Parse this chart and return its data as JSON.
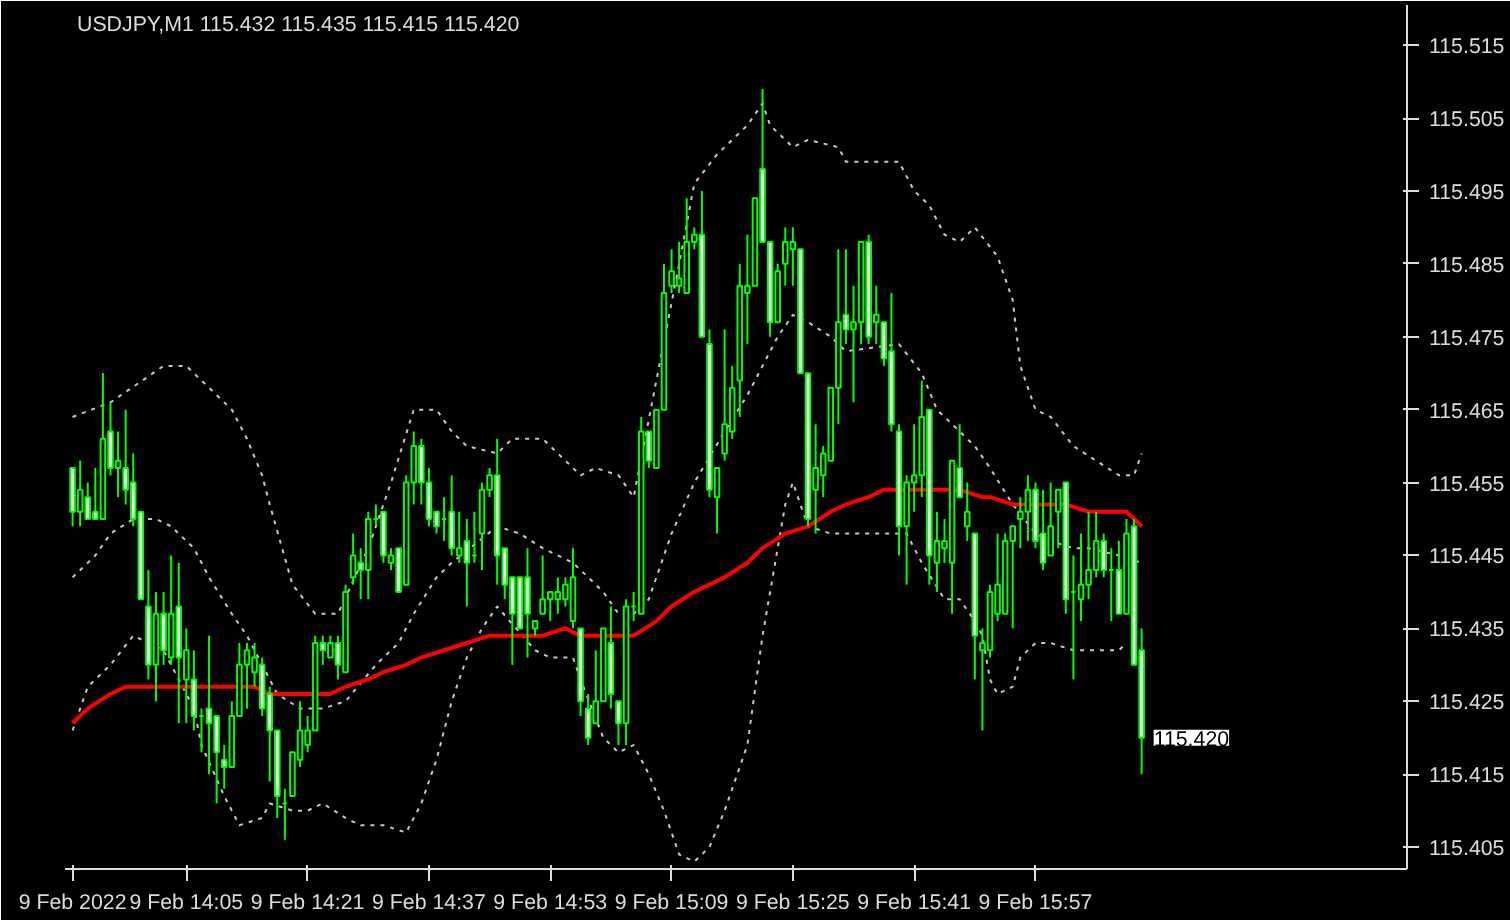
{
  "chart_data": {
    "type": "candlestick",
    "title": "USDJPY,M1  115.432 115.435 115.415 115.420",
    "color": "#00ff00",
    "x": [
      "2022-02-09T13:50",
      "2022-02-09T13:51",
      "2022-02-09T13:52",
      "2022-02-09T13:53",
      "2022-02-09T13:54",
      "2022-02-09T13:55",
      "2022-02-09T13:56",
      "2022-02-09T13:57",
      "2022-02-09T13:58",
      "2022-02-09T13:59",
      "2022-02-09T14:00",
      "2022-02-09T14:01",
      "2022-02-09T14:02",
      "2022-02-09T14:03",
      "2022-02-09T14:04",
      "2022-02-09T14:05",
      "2022-02-09T14:06",
      "2022-02-09T14:07",
      "2022-02-09T14:08",
      "2022-02-09T14:09",
      "2022-02-09T14:10",
      "2022-02-09T14:11",
      "2022-02-09T14:12",
      "2022-02-09T14:13",
      "2022-02-09T14:14",
      "2022-02-09T14:15",
      "2022-02-09T14:16",
      "2022-02-09T14:17",
      "2022-02-09T14:18",
      "2022-02-09T14:19",
      "2022-02-09T14:20",
      "2022-02-09T14:21",
      "2022-02-09T14:22",
      "2022-02-09T14:23",
      "2022-02-09T14:24",
      "2022-02-09T14:25",
      "2022-02-09T14:26",
      "2022-02-09T14:27",
      "2022-02-09T14:28",
      "2022-02-09T14:29",
      "2022-02-09T14:30",
      "2022-02-09T14:31",
      "2022-02-09T14:32",
      "2022-02-09T14:33",
      "2022-02-09T14:34",
      "2022-02-09T14:35",
      "2022-02-09T14:36",
      "2022-02-09T14:37",
      "2022-02-09T14:38",
      "2022-02-09T14:39",
      "2022-02-09T14:40",
      "2022-02-09T14:41",
      "2022-02-09T14:42",
      "2022-02-09T14:43",
      "2022-02-09T14:44",
      "2022-02-09T14:45",
      "2022-02-09T14:46",
      "2022-02-09T14:47",
      "2022-02-09T14:48",
      "2022-02-09T14:49",
      "2022-02-09T14:50",
      "2022-02-09T14:51",
      "2022-02-09T14:52",
      "2022-02-09T14:53",
      "2022-02-09T14:54",
      "2022-02-09T14:55",
      "2022-02-09T14:56",
      "2022-02-09T14:57",
      "2022-02-09T14:58",
      "2022-02-09T14:59",
      "2022-02-09T15:00",
      "2022-02-09T15:01",
      "2022-02-09T15:02",
      "2022-02-09T15:03",
      "2022-02-09T15:04",
      "2022-02-09T15:05",
      "2022-02-09T15:06",
      "2022-02-09T15:07",
      "2022-02-09T15:08",
      "2022-02-09T15:09",
      "2022-02-09T15:10",
      "2022-02-09T15:11",
      "2022-02-09T15:12",
      "2022-02-09T15:13",
      "2022-02-09T15:14",
      "2022-02-09T15:15",
      "2022-02-09T15:16",
      "2022-02-09T15:17",
      "2022-02-09T15:18",
      "2022-02-09T15:19",
      "2022-02-09T15:20",
      "2022-02-09T15:21",
      "2022-02-09T15:22",
      "2022-02-09T15:23",
      "2022-02-09T15:24",
      "2022-02-09T15:25",
      "2022-02-09T15:26",
      "2022-02-09T15:27",
      "2022-02-09T15:28",
      "2022-02-09T15:29",
      "2022-02-09T15:30",
      "2022-02-09T15:31",
      "2022-02-09T15:32",
      "2022-02-09T15:33",
      "2022-02-09T15:34",
      "2022-02-09T15:35",
      "2022-02-09T15:36",
      "2022-02-09T15:37",
      "2022-02-09T15:38",
      "2022-02-09T15:39",
      "2022-02-09T15:40",
      "2022-02-09T15:41",
      "2022-02-09T15:42",
      "2022-02-09T15:43",
      "2022-02-09T15:44",
      "2022-02-09T15:45",
      "2022-02-09T15:46",
      "2022-02-09T15:47",
      "2022-02-09T15:48",
      "2022-02-09T15:49",
      "2022-02-09T15:50",
      "2022-02-09T15:51",
      "2022-02-09T15:52",
      "2022-02-09T15:53",
      "2022-02-09T15:54",
      "2022-02-09T15:55",
      "2022-02-09T15:56",
      "2022-02-09T15:57",
      "2022-02-09T15:58",
      "2022-02-09T15:59",
      "2022-02-09T16:00",
      "2022-02-09T16:01",
      "2022-02-09T16:02",
      "2022-02-09T16:03",
      "2022-02-09T16:04",
      "2022-02-09T16:05",
      "2022-02-09T16:06",
      "2022-02-09T16:07",
      "2022-02-09T16:08",
      "2022-02-09T16:09",
      "2022-02-09T16:10",
      "2022-02-09T16:11"
    ],
    "ohlc": [
      [
        115.457,
        115.457,
        115.449,
        115.451
      ],
      [
        115.451,
        115.458,
        115.449,
        115.454
      ],
      [
        115.453,
        115.455,
        115.45,
        115.45
      ],
      [
        115.451,
        115.457,
        115.45,
        115.45
      ],
      [
        115.45,
        115.47,
        115.45,
        115.461
      ],
      [
        115.462,
        115.466,
        115.456,
        115.457
      ],
      [
        115.457,
        115.462,
        115.453,
        115.458
      ],
      [
        115.457,
        115.465,
        115.452,
        115.454
      ],
      [
        115.455,
        115.459,
        115.449,
        115.45
      ],
      [
        115.451,
        115.451,
        115.439,
        115.439
      ],
      [
        115.438,
        115.443,
        115.428,
        115.43
      ],
      [
        115.43,
        115.44,
        115.425,
        115.437
      ],
      [
        115.437,
        115.44,
        115.43,
        115.432
      ],
      [
        115.431,
        115.445,
        115.43,
        115.437
      ],
      [
        115.438,
        115.444,
        115.422,
        115.431
      ],
      [
        115.428,
        115.435,
        115.422,
        115.432
      ],
      [
        115.428,
        115.432,
        115.421,
        115.423
      ],
      [
        115.423,
        115.424,
        115.418,
        115.423
      ],
      [
        115.424,
        115.434,
        115.415,
        115.422
      ],
      [
        115.423,
        115.423,
        115.411,
        115.418
      ],
      [
        115.417,
        115.419,
        115.413,
        115.416
      ],
      [
        115.416,
        115.425,
        115.416,
        115.423
      ],
      [
        115.423,
        115.433,
        115.423,
        115.43
      ],
      [
        115.43,
        115.433,
        115.424,
        115.432
      ],
      [
        115.429,
        115.433,
        115.427,
        115.431
      ],
      [
        115.43,
        115.431,
        115.423,
        115.424
      ],
      [
        115.426,
        115.427,
        115.414,
        115.421
      ],
      [
        115.421,
        115.421,
        115.409,
        115.412
      ],
      [
        115.411,
        115.413,
        115.406,
        115.411
      ],
      [
        115.412,
        115.418,
        115.412,
        115.418
      ],
      [
        115.417,
        115.425,
        115.416,
        115.421
      ],
      [
        115.419,
        115.423,
        115.418,
        115.421
      ],
      [
        115.421,
        115.434,
        115.421,
        115.433
      ],
      [
        115.433,
        115.434,
        115.43,
        115.432
      ],
      [
        115.431,
        115.434,
        115.431,
        115.433
      ],
      [
        115.433,
        115.434,
        115.428,
        115.43
      ],
      [
        115.429,
        115.441,
        115.429,
        115.44
      ],
      [
        115.442,
        115.448,
        115.441,
        115.445
      ],
      [
        115.444,
        115.446,
        115.439,
        115.443
      ],
      [
        115.443,
        115.451,
        115.439,
        115.45
      ],
      [
        115.45,
        115.452,
        115.449,
        115.45
      ],
      [
        115.451,
        115.451,
        115.444,
        115.445
      ],
      [
        115.444,
        115.446,
        115.443,
        115.445
      ],
      [
        115.446,
        115.446,
        115.44,
        115.44
      ],
      [
        115.441,
        115.456,
        115.441,
        115.455
      ],
      [
        115.455,
        115.462,
        115.452,
        115.46
      ],
      [
        115.46,
        115.461,
        115.452,
        115.455
      ],
      [
        115.455,
        115.457,
        115.449,
        115.45
      ],
      [
        115.451,
        115.451,
        115.448,
        115.449
      ],
      [
        115.45,
        115.453,
        115.447,
        115.45
      ],
      [
        115.451,
        115.456,
        115.445,
        115.446
      ],
      [
        115.445,
        115.451,
        115.444,
        115.446
      ],
      [
        115.447,
        115.45,
        115.438,
        115.444
      ],
      [
        115.445,
        115.451,
        115.444,
        115.445
      ],
      [
        115.448,
        115.455,
        115.443,
        115.454
      ],
      [
        115.454,
        115.457,
        115.453,
        115.456
      ],
      [
        115.456,
        115.461,
        115.441,
        115.445
      ],
      [
        115.446,
        115.446,
        115.439,
        115.441
      ],
      [
        115.442,
        115.442,
        115.43,
        115.437
      ],
      [
        115.442,
        115.442,
        115.435,
        115.435
      ],
      [
        115.442,
        115.446,
        115.431,
        115.437
      ],
      [
        115.435,
        115.436,
        115.434,
        115.436
      ],
      [
        115.437,
        115.445,
        115.437,
        115.439
      ],
      [
        115.439,
        115.44,
        115.436,
        115.44
      ],
      [
        115.439,
        115.442,
        115.437,
        115.44
      ],
      [
        115.439,
        115.442,
        115.438,
        115.441
      ],
      [
        115.436,
        115.446,
        115.435,
        115.442
      ],
      [
        115.435,
        115.435,
        115.423,
        115.425
      ],
      [
        115.424,
        115.426,
        115.419,
        115.42
      ],
      [
        115.422,
        115.432,
        115.422,
        115.425
      ],
      [
        115.425,
        115.435,
        115.425,
        115.435
      ],
      [
        115.433,
        115.438,
        115.424,
        115.426
      ],
      [
        115.425,
        115.425,
        115.419,
        115.422
      ],
      [
        115.422,
        115.439,
        115.419,
        115.438
      ],
      [
        115.438,
        115.44,
        115.436,
        115.438
      ],
      [
        115.437,
        115.464,
        115.437,
        115.462
      ],
      [
        115.462,
        115.462,
        115.457,
        115.458
      ],
      [
        115.457,
        115.465,
        115.457,
        115.465
      ],
      [
        115.465,
        115.485,
        115.465,
        115.481
      ],
      [
        115.482,
        115.487,
        115.481,
        115.484
      ],
      [
        115.482,
        115.488,
        115.481,
        115.483
      ],
      [
        115.481,
        115.494,
        115.481,
        115.488
      ],
      [
        115.488,
        115.49,
        115.487,
        115.489
      ],
      [
        115.489,
        115.495,
        115.475,
        115.475
      ],
      [
        115.474,
        115.476,
        115.453,
        115.454
      ],
      [
        115.453,
        115.457,
        115.448,
        115.457
      ],
      [
        115.459,
        115.476,
        115.458,
        115.463
      ],
      [
        115.462,
        115.471,
        115.461,
        115.468
      ],
      [
        115.469,
        115.485,
        115.464,
        115.482
      ],
      [
        115.481,
        115.489,
        115.474,
        115.482
      ],
      [
        115.482,
        115.494,
        115.482,
        115.494
      ],
      [
        115.498,
        115.509,
        115.488,
        115.488
      ],
      [
        115.488,
        115.488,
        115.475,
        115.477
      ],
      [
        115.477,
        115.485,
        115.477,
        115.484
      ],
      [
        115.485,
        115.49,
        115.482,
        115.488
      ],
      [
        115.487,
        115.49,
        115.482,
        115.488
      ],
      [
        115.487,
        115.487,
        115.47,
        115.47
      ],
      [
        115.47,
        115.47,
        115.449,
        115.45
      ],
      [
        115.454,
        115.463,
        115.448,
        115.457
      ],
      [
        115.456,
        115.46,
        115.453,
        115.459
      ],
      [
        115.458,
        115.468,
        115.458,
        115.468
      ],
      [
        115.468,
        115.487,
        115.463,
        115.477
      ],
      [
        115.478,
        115.487,
        115.474,
        115.476
      ],
      [
        115.476,
        115.482,
        115.466,
        115.477
      ],
      [
        115.477,
        115.488,
        115.474,
        115.488
      ],
      [
        115.488,
        115.489,
        115.474,
        115.475
      ],
      [
        115.477,
        115.482,
        115.474,
        115.478
      ],
      [
        115.477,
        115.477,
        115.471,
        115.472
      ],
      [
        115.473,
        115.481,
        115.462,
        115.463
      ],
      [
        115.462,
        115.463,
        115.445,
        115.449
      ],
      [
        115.449,
        115.456,
        115.441,
        115.455
      ],
      [
        115.455,
        115.463,
        115.451,
        115.456
      ],
      [
        115.456,
        115.469,
        115.453,
        115.464
      ],
      [
        115.465,
        115.465,
        115.441,
        115.445
      ],
      [
        115.444,
        115.451,
        115.44,
        115.447
      ],
      [
        115.446,
        115.45,
        115.444,
        115.447
      ],
      [
        115.444,
        115.458,
        115.437,
        115.458
      ],
      [
        115.457,
        115.463,
        115.453,
        115.453
      ],
      [
        115.449,
        115.455,
        115.447,
        115.451
      ],
      [
        115.448,
        115.448,
        115.428,
        115.434
      ],
      [
        115.432,
        115.435,
        115.421,
        115.433
      ],
      [
        115.432,
        115.441,
        115.431,
        115.44
      ],
      [
        115.437,
        115.448,
        115.436,
        115.441
      ],
      [
        115.437,
        115.448,
        115.437,
        115.447
      ],
      [
        115.447,
        115.449,
        115.435,
        115.449
      ],
      [
        115.45,
        115.453,
        115.446,
        115.451
      ],
      [
        115.451,
        115.456,
        115.447,
        115.454
      ],
      [
        115.454,
        115.455,
        115.446,
        115.447
      ],
      [
        115.448,
        115.454,
        115.443,
        115.444
      ],
      [
        115.445,
        115.455,
        115.445,
        115.449
      ],
      [
        115.451,
        115.454,
        115.446,
        115.454
      ],
      [
        115.455,
        115.455,
        115.437,
        115.439
      ],
      [
        115.44,
        115.445,
        115.428,
        115.44
      ],
      [
        115.439,
        115.448,
        115.436,
        115.441
      ],
      [
        115.441,
        115.451,
        115.439,
        115.443
      ],
      [
        115.443,
        115.451,
        115.442,
        115.447
      ],
      [
        115.447,
        115.448,
        115.442,
        115.443
      ],
      [
        115.443,
        115.446,
        115.436,
        115.443
      ],
      [
        115.443,
        115.447,
        115.437,
        115.437
      ],
      [
        115.437,
        115.45,
        115.437,
        115.448
      ],
      [
        115.449,
        115.45,
        115.43,
        115.43
      ],
      [
        115.432,
        115.435,
        115.415,
        115.42
      ]
    ],
    "series": [
      {
        "type": "line",
        "color": "#c8c8c8",
        "line_style": "dotted",
        "x": [
          "2022-02-09T13:50",
          "2022-02-09T13:55",
          "2022-02-09T14:02",
          "2022-02-09T14:05",
          "2022-02-09T14:08",
          "2022-02-09T14:11",
          "2022-02-09T14:13",
          "2022-02-09T14:15",
          "2022-02-09T14:16",
          "2022-02-09T14:19",
          "2022-02-09T14:22",
          "2022-02-09T14:25",
          "2022-02-09T14:29",
          "2022-02-09T14:32",
          "2022-02-09T14:35",
          "2022-02-09T14:38",
          "2022-02-09T14:40",
          "2022-02-09T14:42",
          "2022-02-09T14:46",
          "2022-02-09T14:48",
          "2022-02-09T14:52",
          "2022-02-09T14:54",
          "2022-02-09T14:57",
          "2022-02-09T14:59",
          "2022-02-09T15:02",
          "2022-02-09T15:04",
          "2022-02-09T15:07",
          "2022-02-09T15:10",
          "2022-02-09T15:12",
          "2022-02-09T15:15",
          "2022-02-09T15:19",
          "2022-02-09T15:21",
          "2022-02-09T15:22",
          "2022-02-09T15:25",
          "2022-02-09T15:27",
          "2022-02-09T15:31",
          "2022-02-09T15:32",
          "2022-02-09T15:36",
          "2022-02-09T15:39",
          "2022-02-09T15:41",
          "2022-02-09T15:43",
          "2022-02-09T15:45",
          "2022-02-09T15:47",
          "2022-02-09T15:49",
          "2022-02-09T15:52",
          "2022-02-09T15:54",
          "2022-02-09T15:55",
          "2022-02-09T15:57",
          "2022-02-09T15:59",
          "2022-02-09T16:02",
          "2022-02-09T16:05",
          "2022-02-09T16:08",
          "2022-02-09T16:10",
          "2022-02-09T16:11"
        ],
        "values": [
          115.464,
          115.466,
          115.471,
          115.471,
          115.468,
          115.465,
          115.461,
          115.456,
          115.452,
          115.441,
          115.437,
          115.437,
          115.446,
          115.455,
          115.465,
          115.465,
          115.462,
          115.46,
          115.459,
          115.461,
          115.461,
          115.459,
          115.456,
          115.457,
          115.456,
          115.453,
          115.469,
          115.485,
          115.496,
          115.5,
          115.504,
          115.507,
          115.504,
          115.501,
          115.502,
          115.501,
          115.499,
          115.499,
          115.499,
          115.495,
          115.493,
          115.489,
          115.488,
          115.49,
          115.486,
          115.48,
          115.471,
          115.465,
          115.464,
          115.46,
          115.458,
          115.456,
          115.456,
          115.459
        ]
      },
      {
        "type": "line",
        "color": "#c8c8c8",
        "line_style": "dotted",
        "x": [
          "2022-02-09T13:50",
          "2022-02-09T13:53",
          "2022-02-09T13:55",
          "2022-02-09T13:58",
          "2022-02-09T14:01",
          "2022-02-09T14:03",
          "2022-02-09T14:06",
          "2022-02-09T14:08",
          "2022-02-09T14:11",
          "2022-02-09T14:13",
          "2022-02-09T14:17",
          "2022-02-09T14:20",
          "2022-02-09T14:23",
          "2022-02-09T14:26",
          "2022-02-09T14:30",
          "2022-02-09T14:33",
          "2022-02-09T14:35",
          "2022-02-09T14:38",
          "2022-02-09T14:40",
          "2022-02-09T14:46",
          "2022-02-09T14:49",
          "2022-02-09T14:52",
          "2022-02-09T14:56",
          "2022-02-09T14:58",
          "2022-02-09T15:00",
          "2022-02-09T15:02",
          "2022-02-09T15:04",
          "2022-02-09T15:06",
          "2022-02-09T15:09",
          "2022-02-09T15:12",
          "2022-02-09T15:16",
          "2022-02-09T15:19",
          "2022-02-09T15:23",
          "2022-02-09T15:25",
          "2022-02-09T15:27",
          "2022-02-09T15:30",
          "2022-02-09T15:32",
          "2022-02-09T15:39",
          "2022-02-09T15:42",
          "2022-02-09T15:44",
          "2022-02-09T15:47",
          "2022-02-09T15:49",
          "2022-02-09T15:51",
          "2022-02-09T15:54",
          "2022-02-09T15:57",
          "2022-02-09T15:59",
          "2022-02-09T16:02",
          "2022-02-09T16:04",
          "2022-02-09T16:08",
          "2022-02-09T16:11"
        ],
        "values": [
          115.442,
          115.445,
          115.448,
          115.45,
          115.45,
          115.449,
          115.446,
          115.442,
          115.437,
          115.434,
          115.426,
          115.424,
          115.424,
          115.425,
          115.43,
          115.433,
          115.437,
          115.442,
          115.444,
          115.449,
          115.448,
          115.446,
          115.444,
          115.442,
          115.44,
          115.437,
          115.437,
          115.439,
          115.448,
          115.455,
          115.462,
          115.467,
          115.475,
          115.478,
          115.477,
          115.475,
          115.473,
          115.474,
          115.47,
          115.465,
          115.462,
          115.46,
          115.457,
          115.452,
          115.448,
          115.447,
          115.446,
          115.446,
          115.445,
          115.444
        ]
      },
      {
        "type": "line",
        "color": "#c8c8c8",
        "line_style": "dotted",
        "x": [
          "2022-02-09T13:50",
          "2022-02-09T13:52",
          "2022-02-09T13:55",
          "2022-02-09T13:58",
          "2022-02-09T14:02",
          "2022-02-09T14:06",
          "2022-02-09T14:07",
          "2022-02-09T14:10",
          "2022-02-09T14:12",
          "2022-02-09T14:15",
          "2022-02-09T14:16",
          "2022-02-09T14:19",
          "2022-02-09T14:21",
          "2022-02-09T14:23",
          "2022-02-09T14:26",
          "2022-02-09T14:28",
          "2022-02-09T14:31",
          "2022-02-09T14:34",
          "2022-02-09T14:36",
          "2022-02-09T14:38",
          "2022-02-09T14:40",
          "2022-02-09T14:42",
          "2022-02-09T14:44",
          "2022-02-09T14:46",
          "2022-02-09T14:51",
          "2022-02-09T14:53",
          "2022-02-09T14:56",
          "2022-02-09T14:57",
          "2022-02-09T15:00",
          "2022-02-09T15:02",
          "2022-02-09T15:04",
          "2022-02-09T15:06",
          "2022-02-09T15:08",
          "2022-02-09T15:10",
          "2022-02-09T15:12",
          "2022-02-09T15:14",
          "2022-02-09T15:16",
          "2022-02-09T15:19",
          "2022-02-09T15:21",
          "2022-02-09T15:24",
          "2022-02-09T15:25",
          "2022-02-09T15:27",
          "2022-02-09T15:30",
          "2022-02-09T15:32",
          "2022-02-09T15:40",
          "2022-02-09T15:42",
          "2022-02-09T15:45",
          "2022-02-09T15:47",
          "2022-02-09T15:49",
          "2022-02-09T15:50",
          "2022-02-09T15:51",
          "2022-02-09T15:52",
          "2022-02-09T15:54",
          "2022-02-09T15:55",
          "2022-02-09T15:57",
          "2022-02-09T15:59",
          "2022-02-09T16:02",
          "2022-02-09T16:04",
          "2022-02-09T16:08",
          "2022-02-09T16:09"
        ],
        "values": [
          115.421,
          115.427,
          115.43,
          115.434,
          115.432,
          115.424,
          115.419,
          115.412,
          115.408,
          115.409,
          115.411,
          115.41,
          115.41,
          115.411,
          115.409,
          115.408,
          115.408,
          115.407,
          115.411,
          115.417,
          115.425,
          115.431,
          115.435,
          115.438,
          115.432,
          115.431,
          115.431,
          115.428,
          115.42,
          115.418,
          115.419,
          115.415,
          115.41,
          115.404,
          115.403,
          115.405,
          115.41,
          115.419,
          115.434,
          115.452,
          115.455,
          115.449,
          115.448,
          115.448,
          115.448,
          115.444,
          115.439,
          115.439,
          115.436,
          115.434,
          115.428,
          115.426,
          115.427,
          115.431,
          115.433,
          115.433,
          115.432,
          115.432,
          115.432,
          115.433
        ]
      },
      {
        "type": "line",
        "color": "#ff0000",
        "line_style": "solid",
        "x": [
          "2022-02-09T13:50",
          "2022-02-09T13:52",
          "2022-02-09T13:55",
          "2022-02-09T13:57",
          "2022-02-09T14:00",
          "2022-02-09T14:05",
          "2022-02-09T14:10",
          "2022-02-09T14:14",
          "2022-02-09T14:16",
          "2022-02-09T14:19",
          "2022-02-09T14:21",
          "2022-02-09T14:24",
          "2022-02-09T14:26",
          "2022-02-09T14:29",
          "2022-02-09T14:31",
          "2022-02-09T14:34",
          "2022-02-09T14:36",
          "2022-02-09T14:39",
          "2022-02-09T14:42",
          "2022-02-09T14:45",
          "2022-02-09T14:47",
          "2022-02-09T14:50",
          "2022-02-09T14:52",
          "2022-02-09T14:55",
          "2022-02-09T14:57",
          "2022-02-09T15:00",
          "2022-02-09T15:02",
          "2022-02-09T15:04",
          "2022-02-09T15:07",
          "2022-02-09T15:09",
          "2022-02-09T15:12",
          "2022-02-09T15:14",
          "2022-02-09T15:16",
          "2022-02-09T15:19",
          "2022-02-09T15:21",
          "2022-02-09T15:24",
          "2022-02-09T15:27",
          "2022-02-09T15:30",
          "2022-02-09T15:32",
          "2022-02-09T15:35",
          "2022-02-09T15:37",
          "2022-02-09T15:42",
          "2022-02-09T15:45",
          "2022-02-09T15:47",
          "2022-02-09T15:50",
          "2022-02-09T15:51",
          "2022-02-09T15:54",
          "2022-02-09T15:56",
          "2022-02-09T15:59",
          "2022-02-09T16:01",
          "2022-02-09T16:04",
          "2022-02-09T16:06",
          "2022-02-09T16:09",
          "2022-02-09T16:11"
        ],
        "values": [
          115.422,
          115.424,
          115.426,
          115.427,
          115.427,
          115.427,
          115.427,
          115.427,
          115.426,
          115.426,
          115.426,
          115.426,
          115.427,
          115.428,
          115.429,
          115.43,
          115.431,
          115.432,
          115.433,
          115.434,
          115.434,
          115.434,
          115.434,
          115.435,
          115.434,
          115.434,
          115.434,
          115.434,
          115.436,
          115.438,
          115.44,
          115.441,
          115.442,
          115.444,
          115.446,
          115.448,
          115.449,
          115.451,
          115.452,
          115.453,
          115.454,
          115.454,
          115.454,
          115.454,
          115.453,
          115.453,
          115.452,
          115.452,
          115.452,
          115.452,
          115.451,
          115.451,
          115.451,
          115.449
        ]
      }
    ],
    "xlim": [
      "2022-02-09T13:49",
      "2022-02-09T16:46"
    ],
    "xticks": [
      {
        "value": "2022-02-09T13:50",
        "label": "9 Feb 2022"
      },
      {
        "value": "2022-02-09T14:05",
        "label": "9 Feb 14:05"
      },
      {
        "value": "2022-02-09T14:21",
        "label": "9 Feb 14:21"
      },
      {
        "value": "2022-02-09T14:37",
        "label": "9 Feb 14:37"
      },
      {
        "value": "2022-02-09T14:53",
        "label": "9 Feb 14:53"
      },
      {
        "value": "2022-02-09T15:09",
        "label": "9 Feb 15:09"
      },
      {
        "value": "2022-02-09T15:25",
        "label": "9 Feb 15:25"
      },
      {
        "value": "2022-02-09T15:41",
        "label": "9 Feb 15:41"
      },
      {
        "value": "2022-02-09T15:57",
        "label": "9 Feb 15:57"
      }
    ],
    "ylim": [
      115.402,
      115.5205
    ],
    "yticks": [
      115.405,
      115.415,
      115.425,
      115.435,
      115.445,
      115.455,
      115.465,
      115.475,
      115.485,
      115.495,
      115.505,
      115.515
    ],
    "annotations": [
      {
        "text": "115.420",
        "x": "2022-02-09T16:11",
        "y": 115.42
      }
    ]
  }
}
